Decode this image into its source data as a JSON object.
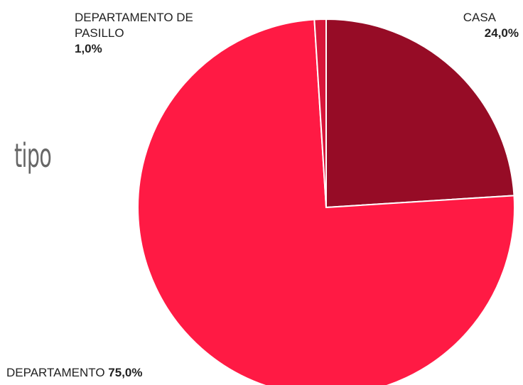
{
  "chart_data": {
    "type": "pie",
    "title": "tipo",
    "categories": [
      "CASA",
      "DEPARTAMENTO",
      "DEPARTAMENTO DE PASILLO"
    ],
    "values": [
      24,
      75,
      1
    ],
    "value_labels": [
      "24,0%",
      "75,0%",
      "1,0%"
    ],
    "colors": [
      "#960c26",
      "#ff1a44",
      "#d8163a"
    ]
  }
}
